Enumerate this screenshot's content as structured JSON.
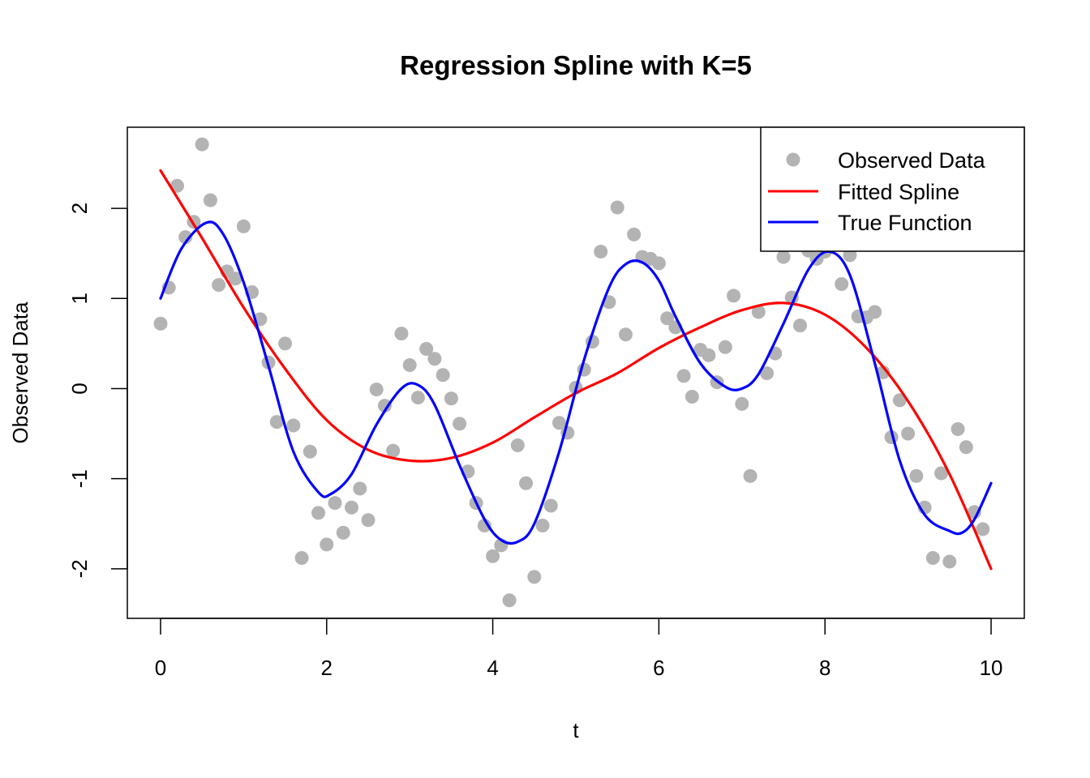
{
  "chart_data": {
    "type": "scatter",
    "title": "Regression Spline with K=5",
    "xlabel": "t",
    "ylabel": "Observed Data",
    "xlim": [
      -0.4,
      10.4
    ],
    "ylim": [
      -2.55,
      2.9
    ],
    "x_ticks": [
      0,
      2,
      4,
      6,
      8,
      10
    ],
    "y_ticks": [
      -2,
      -1,
      0,
      1,
      2
    ],
    "grid": false,
    "legend": {
      "position": "top-right",
      "entries": [
        {
          "label": "Observed Data",
          "kind": "point",
          "color": "#b3b3b3"
        },
        {
          "label": "Fitted Spline",
          "kind": "line",
          "color": "#ff0000"
        },
        {
          "label": "True Function",
          "kind": "line",
          "color": "#0000ff"
        }
      ]
    },
    "series": [
      {
        "name": "Observed Data",
        "kind": "scatter",
        "color": "#b3b3b3",
        "points": [
          [
            0.0,
            0.72
          ],
          [
            0.1,
            1.12
          ],
          [
            0.2,
            2.25
          ],
          [
            0.3,
            1.68
          ],
          [
            0.4,
            1.85
          ],
          [
            0.5,
            2.71
          ],
          [
            0.6,
            2.09
          ],
          [
            0.7,
            1.15
          ],
          [
            0.8,
            1.3
          ],
          [
            0.9,
            1.22
          ],
          [
            1.0,
            1.8
          ],
          [
            1.1,
            1.07
          ],
          [
            1.2,
            0.77
          ],
          [
            1.3,
            0.29
          ],
          [
            1.4,
            -0.37
          ],
          [
            1.5,
            0.5
          ],
          [
            1.6,
            -0.41
          ],
          [
            1.7,
            -1.88
          ],
          [
            1.8,
            -0.7
          ],
          [
            1.9,
            -1.38
          ],
          [
            2.0,
            -1.73
          ],
          [
            2.1,
            -1.27
          ],
          [
            2.2,
            -1.6
          ],
          [
            2.3,
            -1.32
          ],
          [
            2.4,
            -1.11
          ],
          [
            2.5,
            -1.46
          ],
          [
            2.6,
            -0.01
          ],
          [
            2.7,
            -0.19
          ],
          [
            2.8,
            -0.69
          ],
          [
            2.9,
            0.61
          ],
          [
            3.0,
            0.26
          ],
          [
            3.1,
            -0.1
          ],
          [
            3.2,
            0.44
          ],
          [
            3.3,
            0.33
          ],
          [
            3.4,
            0.15
          ],
          [
            3.5,
            -0.11
          ],
          [
            3.6,
            -0.39
          ],
          [
            3.7,
            -0.92
          ],
          [
            3.8,
            -1.27
          ],
          [
            3.9,
            -1.52
          ],
          [
            4.0,
            -1.86
          ],
          [
            4.1,
            -1.74
          ],
          [
            4.2,
            -2.35
          ],
          [
            4.3,
            -0.63
          ],
          [
            4.4,
            -1.05
          ],
          [
            4.5,
            -2.09
          ],
          [
            4.6,
            -1.52
          ],
          [
            4.7,
            -1.3
          ],
          [
            4.8,
            -0.38
          ],
          [
            4.9,
            -0.49
          ],
          [
            5.0,
            0.01
          ],
          [
            5.1,
            0.21
          ],
          [
            5.2,
            0.52
          ],
          [
            5.3,
            1.52
          ],
          [
            5.4,
            0.96
          ],
          [
            5.5,
            2.01
          ],
          [
            5.6,
            0.6
          ],
          [
            5.7,
            1.71
          ],
          [
            5.8,
            1.46
          ],
          [
            5.9,
            1.44
          ],
          [
            6.0,
            1.39
          ],
          [
            6.1,
            0.78
          ],
          [
            6.2,
            0.68
          ],
          [
            6.3,
            0.14
          ],
          [
            6.4,
            -0.09
          ],
          [
            6.5,
            0.43
          ],
          [
            6.6,
            0.37
          ],
          [
            6.7,
            0.07
          ],
          [
            6.8,
            0.46
          ],
          [
            6.9,
            1.03
          ],
          [
            7.0,
            -0.17
          ],
          [
            7.1,
            -0.97
          ],
          [
            7.2,
            0.85
          ],
          [
            7.3,
            0.17
          ],
          [
            7.4,
            0.39
          ],
          [
            7.5,
            1.46
          ],
          [
            7.6,
            1.01
          ],
          [
            7.7,
            0.7
          ],
          [
            7.8,
            1.53
          ],
          [
            7.9,
            1.44
          ],
          [
            8.0,
            1.52
          ],
          [
            8.1,
            1.68
          ],
          [
            8.2,
            1.16
          ],
          [
            8.3,
            1.48
          ],
          [
            8.4,
            0.8
          ],
          [
            8.5,
            0.79
          ],
          [
            8.6,
            0.85
          ],
          [
            8.7,
            0.18
          ],
          [
            8.8,
            -0.54
          ],
          [
            8.9,
            -0.13
          ],
          [
            9.0,
            -0.5
          ],
          [
            9.1,
            -0.97
          ],
          [
            9.2,
            -1.32
          ],
          [
            9.3,
            -1.88
          ],
          [
            9.4,
            -0.94
          ],
          [
            9.5,
            -1.92
          ],
          [
            9.6,
            -0.45
          ],
          [
            9.7,
            -0.65
          ],
          [
            9.8,
            -1.37
          ],
          [
            9.9,
            -1.56
          ]
        ]
      },
      {
        "name": "Fitted Spline",
        "kind": "line",
        "color": "#ff0000",
        "x": [
          0,
          0.5,
          1,
          1.5,
          2,
          2.5,
          3,
          3.5,
          4,
          4.5,
          5,
          5.5,
          6,
          6.5,
          7,
          7.5,
          8,
          8.5,
          9,
          9.5,
          10
        ],
        "y": [
          2.42,
          1.67,
          0.9,
          0.22,
          -0.35,
          -0.68,
          -0.8,
          -0.77,
          -0.6,
          -0.32,
          -0.05,
          0.17,
          0.45,
          0.68,
          0.87,
          0.95,
          0.82,
          0.45,
          -0.14,
          -0.95,
          -2.0
        ]
      },
      {
        "name": "True Function",
        "kind": "line",
        "color": "#0000ff",
        "x": [
          0,
          0.25,
          0.55,
          0.75,
          1.0,
          1.3,
          1.6,
          1.9,
          2.05,
          2.3,
          2.6,
          2.9,
          3.1,
          3.3,
          3.6,
          3.9,
          4.1,
          4.3,
          4.5,
          4.8,
          5.1,
          5.4,
          5.6,
          5.8,
          6.0,
          6.2,
          6.5,
          6.8,
          7.0,
          7.2,
          7.5,
          7.8,
          8.05,
          8.3,
          8.6,
          8.9,
          9.2,
          9.5,
          9.65,
          9.8,
          10.0
        ],
        "y": [
          1.0,
          1.55,
          1.84,
          1.72,
          1.18,
          0.25,
          -0.7,
          -1.15,
          -1.17,
          -0.95,
          -0.4,
          0.0,
          0.04,
          -0.18,
          -0.85,
          -1.45,
          -1.68,
          -1.7,
          -1.5,
          -0.7,
          0.32,
          1.12,
          1.38,
          1.4,
          1.2,
          0.8,
          0.28,
          0.02,
          0.0,
          0.16,
          0.72,
          1.32,
          1.52,
          1.26,
          0.28,
          -0.8,
          -1.4,
          -1.58,
          -1.6,
          -1.45,
          -1.05
        ]
      }
    ]
  }
}
